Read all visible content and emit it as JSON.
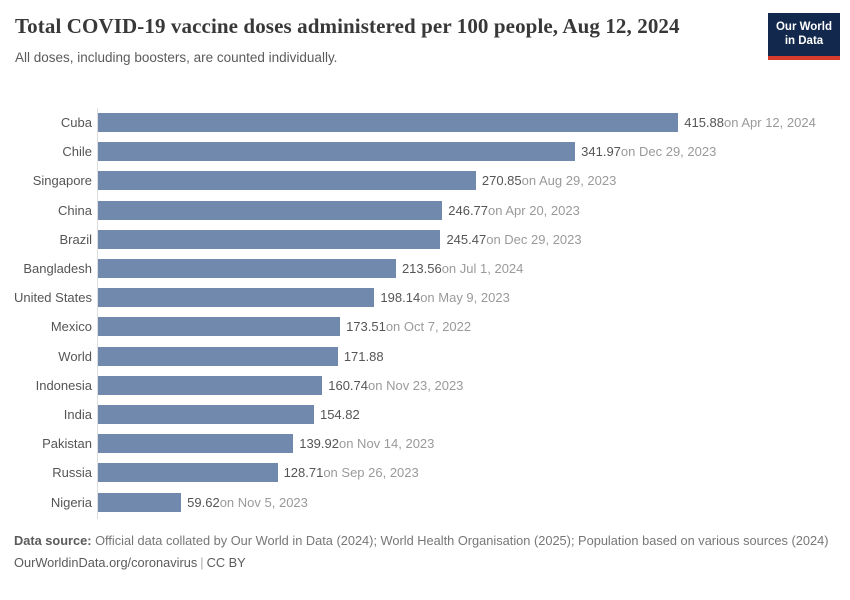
{
  "header": {
    "title": "Total COVID-19 vaccine doses administered per 100 people, Aug 12, 2024",
    "subtitle": "All doses, including boosters, are counted individually.",
    "logo_line1": "Our World",
    "logo_line2": "in Data",
    "logo_bg_color": "#12294d",
    "logo_accent_color": "#d73c2d"
  },
  "chart_data": {
    "type": "bar",
    "orientation": "horizontal",
    "title": "Total COVID-19 vaccine doses administered per 100 people, Aug 12, 2024",
    "xlabel": "",
    "ylabel": "",
    "xlim": [
      0,
      539
    ],
    "x_scale_max": 539,
    "grid": false,
    "legend": false,
    "bar_color": "#7289ae",
    "categories": [
      "Cuba",
      "Chile",
      "Singapore",
      "China",
      "Brazil",
      "Bangladesh",
      "United States",
      "Mexico",
      "World",
      "Indonesia",
      "India",
      "Pakistan",
      "Russia",
      "Nigeria"
    ],
    "values": [
      415.88,
      341.97,
      270.85,
      246.77,
      245.47,
      213.56,
      198.14,
      173.51,
      171.88,
      160.74,
      154.82,
      139.92,
      128.71,
      59.62
    ],
    "entries": [
      {
        "label": "Cuba",
        "value": 415.88,
        "value_label": "415.88",
        "date_label": "on Apr 12, 2024"
      },
      {
        "label": "Chile",
        "value": 341.97,
        "value_label": "341.97",
        "date_label": "on Dec 29, 2023"
      },
      {
        "label": "Singapore",
        "value": 270.85,
        "value_label": "270.85",
        "date_label": "on Aug 29, 2023"
      },
      {
        "label": "China",
        "value": 246.77,
        "value_label": "246.77",
        "date_label": "on Apr 20, 2023"
      },
      {
        "label": "Brazil",
        "value": 245.47,
        "value_label": "245.47",
        "date_label": "on Dec 29, 2023"
      },
      {
        "label": "Bangladesh",
        "value": 213.56,
        "value_label": "213.56",
        "date_label": "on Jul 1, 2024"
      },
      {
        "label": "United States",
        "value": 198.14,
        "value_label": "198.14",
        "date_label": "on May 9, 2023"
      },
      {
        "label": "Mexico",
        "value": 173.51,
        "value_label": "173.51",
        "date_label": "on Oct 7, 2022"
      },
      {
        "label": "World",
        "value": 171.88,
        "value_label": "171.88",
        "date_label": ""
      },
      {
        "label": "Indonesia",
        "value": 160.74,
        "value_label": "160.74",
        "date_label": "on Nov 23, 2023"
      },
      {
        "label": "India",
        "value": 154.82,
        "value_label": "154.82",
        "date_label": ""
      },
      {
        "label": "Pakistan",
        "value": 139.92,
        "value_label": "139.92",
        "date_label": "on Nov 14, 2023"
      },
      {
        "label": "Russia",
        "value": 128.71,
        "value_label": "128.71",
        "date_label": "on Sep 26, 2023"
      },
      {
        "label": "Nigeria",
        "value": 59.62,
        "value_label": "59.62",
        "date_label": "on Nov 5, 2023"
      }
    ]
  },
  "footer": {
    "source_label": "Data source:",
    "source_text": " Official data collated by Our World in Data (2024); World Health Organisation (2025); Population based on various sources (2024)",
    "link": "OurWorldinData.org/coronavirus",
    "separator": "|",
    "license": "CC BY"
  }
}
